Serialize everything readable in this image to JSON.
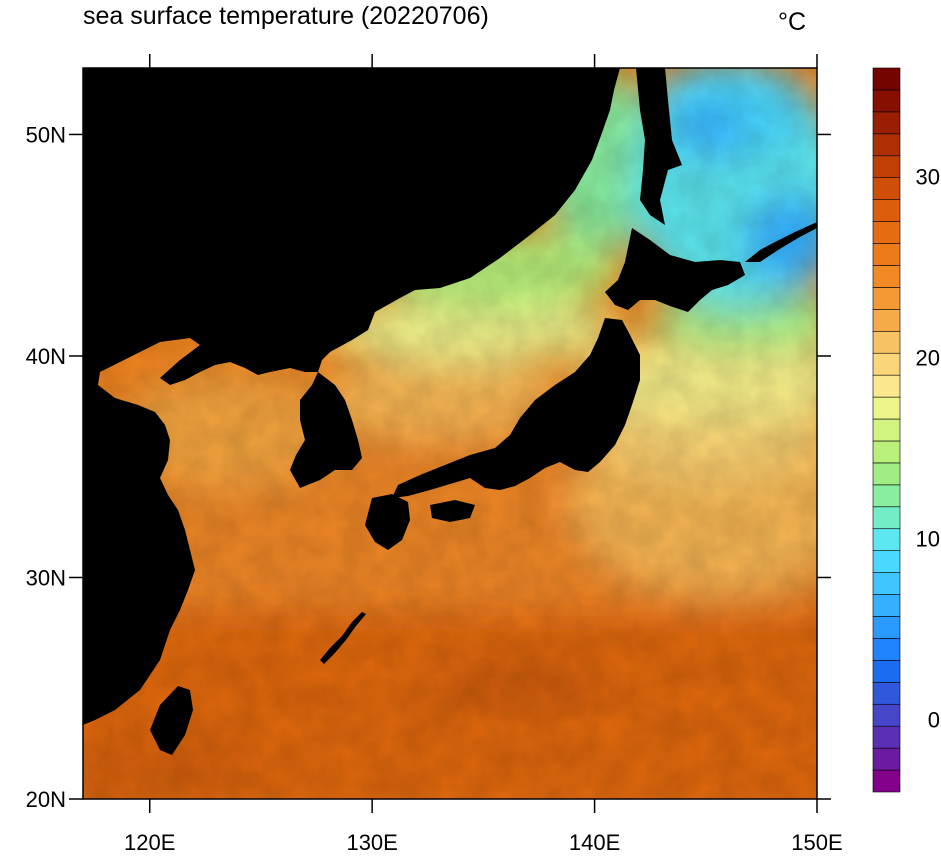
{
  "title": "sea surface temperature (20220706)",
  "units": "°C",
  "map": {
    "lon_range": [
      117,
      150
    ],
    "lat_range": [
      20,
      53
    ],
    "land_color": "#000000",
    "lon_ticks": [
      {
        "value": 120,
        "label": "120E"
      },
      {
        "value": 130,
        "label": "130E"
      },
      {
        "value": 140,
        "label": "140E"
      },
      {
        "value": 150,
        "label": "150E"
      }
    ],
    "lat_ticks": [
      {
        "value": 20,
        "label": "20N"
      },
      {
        "value": 30,
        "label": "30N"
      },
      {
        "value": 40,
        "label": "40N"
      },
      {
        "value": 50,
        "label": "50N"
      }
    ]
  },
  "colorbar": {
    "min": -4,
    "max": 36,
    "step": 1.5,
    "colors": [
      "#82008a",
      "#6c1aa0",
      "#5a2fb4",
      "#4646c8",
      "#3058dc",
      "#1b6cf0",
      "#1f82ff",
      "#2a9aff",
      "#34b0ff",
      "#3fc6ff",
      "#4ad8ff",
      "#5ce6ef",
      "#73edc8",
      "#8aeea1",
      "#a1ed84",
      "#b8f07a",
      "#d1f37f",
      "#ecf58a",
      "#fbe88c",
      "#fad57a",
      "#f7c264",
      "#f5ab48",
      "#f39a35",
      "#f18a25",
      "#ed7a18",
      "#e56c10",
      "#dc5e0c",
      "#cf4f08",
      "#bf3f05",
      "#ad2f03",
      "#9a1f02",
      "#870f01",
      "#740400"
    ],
    "tick_labels": [
      {
        "value": 0,
        "label": "0"
      },
      {
        "value": 10,
        "label": "10"
      },
      {
        "value": 20,
        "label": "20"
      },
      {
        "value": 30,
        "label": "30"
      }
    ]
  }
}
